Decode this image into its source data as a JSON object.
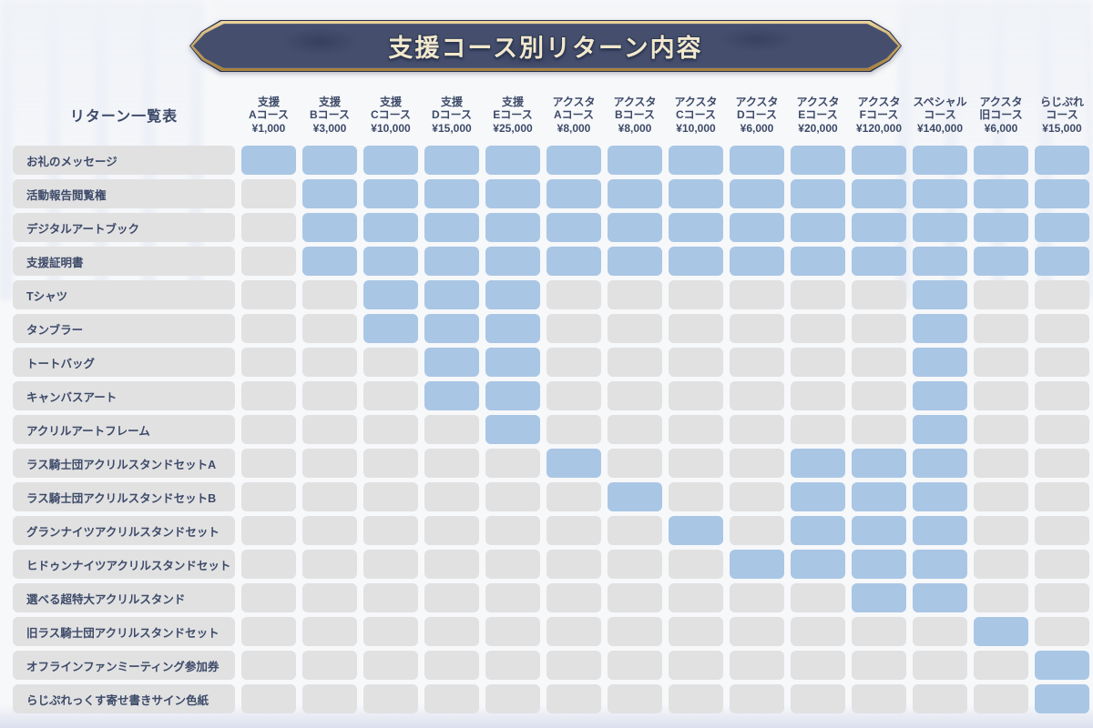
{
  "chart_data": {
    "type": "table",
    "title": "支援コース別リターン内容",
    "corner_label": "リターン一覧表",
    "legend_note": "blue cell = return included in course, gray cell = not included",
    "columns": [
      {
        "line1": "支援",
        "line2": "Aコース",
        "price": "¥1,000"
      },
      {
        "line1": "支援",
        "line2": "Bコース",
        "price": "¥3,000"
      },
      {
        "line1": "支援",
        "line2": "Cコース",
        "price": "¥10,000"
      },
      {
        "line1": "支援",
        "line2": "Dコース",
        "price": "¥15,000"
      },
      {
        "line1": "支援",
        "line2": "Eコース",
        "price": "¥25,000"
      },
      {
        "line1": "アクスタ",
        "line2": "Aコース",
        "price": "¥8,000"
      },
      {
        "line1": "アクスタ",
        "line2": "Bコース",
        "price": "¥8,000"
      },
      {
        "line1": "アクスタ",
        "line2": "Cコース",
        "price": "¥10,000"
      },
      {
        "line1": "アクスタ",
        "line2": "Dコース",
        "price": "¥6,000"
      },
      {
        "line1": "アクスタ",
        "line2": "Eコース",
        "price": "¥20,000"
      },
      {
        "line1": "アクスタ",
        "line2": "Fコース",
        "price": "¥120,000"
      },
      {
        "line1": "スペシャル",
        "line2": "コース",
        "price": "¥140,000"
      },
      {
        "line1": "アクスタ",
        "line2": "旧コース",
        "price": "¥6,000"
      },
      {
        "line1": "らじぷれ",
        "line2": "コース",
        "price": "¥15,000"
      }
    ],
    "rows": [
      {
        "label": "お礼のメッセージ",
        "included": [
          1,
          1,
          1,
          1,
          1,
          1,
          1,
          1,
          1,
          1,
          1,
          1,
          1,
          1
        ]
      },
      {
        "label": "活動報告閲覧権",
        "included": [
          0,
          1,
          1,
          1,
          1,
          1,
          1,
          1,
          1,
          1,
          1,
          1,
          1,
          1
        ]
      },
      {
        "label": "デジタルアートブック",
        "included": [
          0,
          1,
          1,
          1,
          1,
          1,
          1,
          1,
          1,
          1,
          1,
          1,
          1,
          1
        ]
      },
      {
        "label": "支援証明書",
        "included": [
          0,
          1,
          1,
          1,
          1,
          1,
          1,
          1,
          1,
          1,
          1,
          1,
          1,
          1
        ]
      },
      {
        "label": "Tシャツ",
        "included": [
          0,
          0,
          1,
          1,
          1,
          0,
          0,
          0,
          0,
          0,
          0,
          1,
          0,
          0
        ]
      },
      {
        "label": "タンブラー",
        "included": [
          0,
          0,
          1,
          1,
          1,
          0,
          0,
          0,
          0,
          0,
          0,
          1,
          0,
          0
        ]
      },
      {
        "label": "トートバッグ",
        "included": [
          0,
          0,
          0,
          1,
          1,
          0,
          0,
          0,
          0,
          0,
          0,
          1,
          0,
          0
        ]
      },
      {
        "label": "キャンバスアート",
        "included": [
          0,
          0,
          0,
          1,
          1,
          0,
          0,
          0,
          0,
          0,
          0,
          1,
          0,
          0
        ]
      },
      {
        "label": "アクリルアートフレーム",
        "included": [
          0,
          0,
          0,
          0,
          1,
          0,
          0,
          0,
          0,
          0,
          0,
          1,
          0,
          0
        ]
      },
      {
        "label": "ラス騎士団アクリルスタンドセットA",
        "included": [
          0,
          0,
          0,
          0,
          0,
          1,
          0,
          0,
          0,
          1,
          1,
          1,
          0,
          0
        ]
      },
      {
        "label": "ラス騎士団アクリルスタンドセットB",
        "included": [
          0,
          0,
          0,
          0,
          0,
          0,
          1,
          0,
          0,
          1,
          1,
          1,
          0,
          0
        ]
      },
      {
        "label": "グランナイツアクリルスタンドセット",
        "included": [
          0,
          0,
          0,
          0,
          0,
          0,
          0,
          1,
          0,
          1,
          1,
          1,
          0,
          0
        ]
      },
      {
        "label": "ヒドゥンナイツアクリルスタンドセット",
        "included": [
          0,
          0,
          0,
          0,
          0,
          0,
          0,
          0,
          1,
          1,
          1,
          1,
          0,
          0
        ]
      },
      {
        "label": "選べる超特大アクリルスタンド",
        "included": [
          0,
          0,
          0,
          0,
          0,
          0,
          0,
          0,
          0,
          0,
          1,
          1,
          0,
          0
        ]
      },
      {
        "label": "旧ラス騎士団アクリルスタンドセット",
        "included": [
          0,
          0,
          0,
          0,
          0,
          0,
          0,
          0,
          0,
          0,
          0,
          0,
          1,
          0
        ]
      },
      {
        "label": "オフラインファンミーティング参加券",
        "included": [
          0,
          0,
          0,
          0,
          0,
          0,
          0,
          0,
          0,
          0,
          0,
          0,
          0,
          1
        ]
      },
      {
        "label": "らじぷれっくす寄せ書きサイン色紙",
        "included": [
          0,
          0,
          0,
          0,
          0,
          0,
          0,
          0,
          0,
          0,
          0,
          0,
          0,
          1
        ]
      }
    ]
  },
  "colors": {
    "included_cell": "#a9c6e5",
    "excluded_cell": "#e1e1e2",
    "row_label_bg": "#e1e1e2",
    "header_text": "#3d4a68",
    "banner_fill": "#454f6d",
    "banner_border_gold": "#c9a86b",
    "banner_title_text": "#f2e8cc"
  }
}
